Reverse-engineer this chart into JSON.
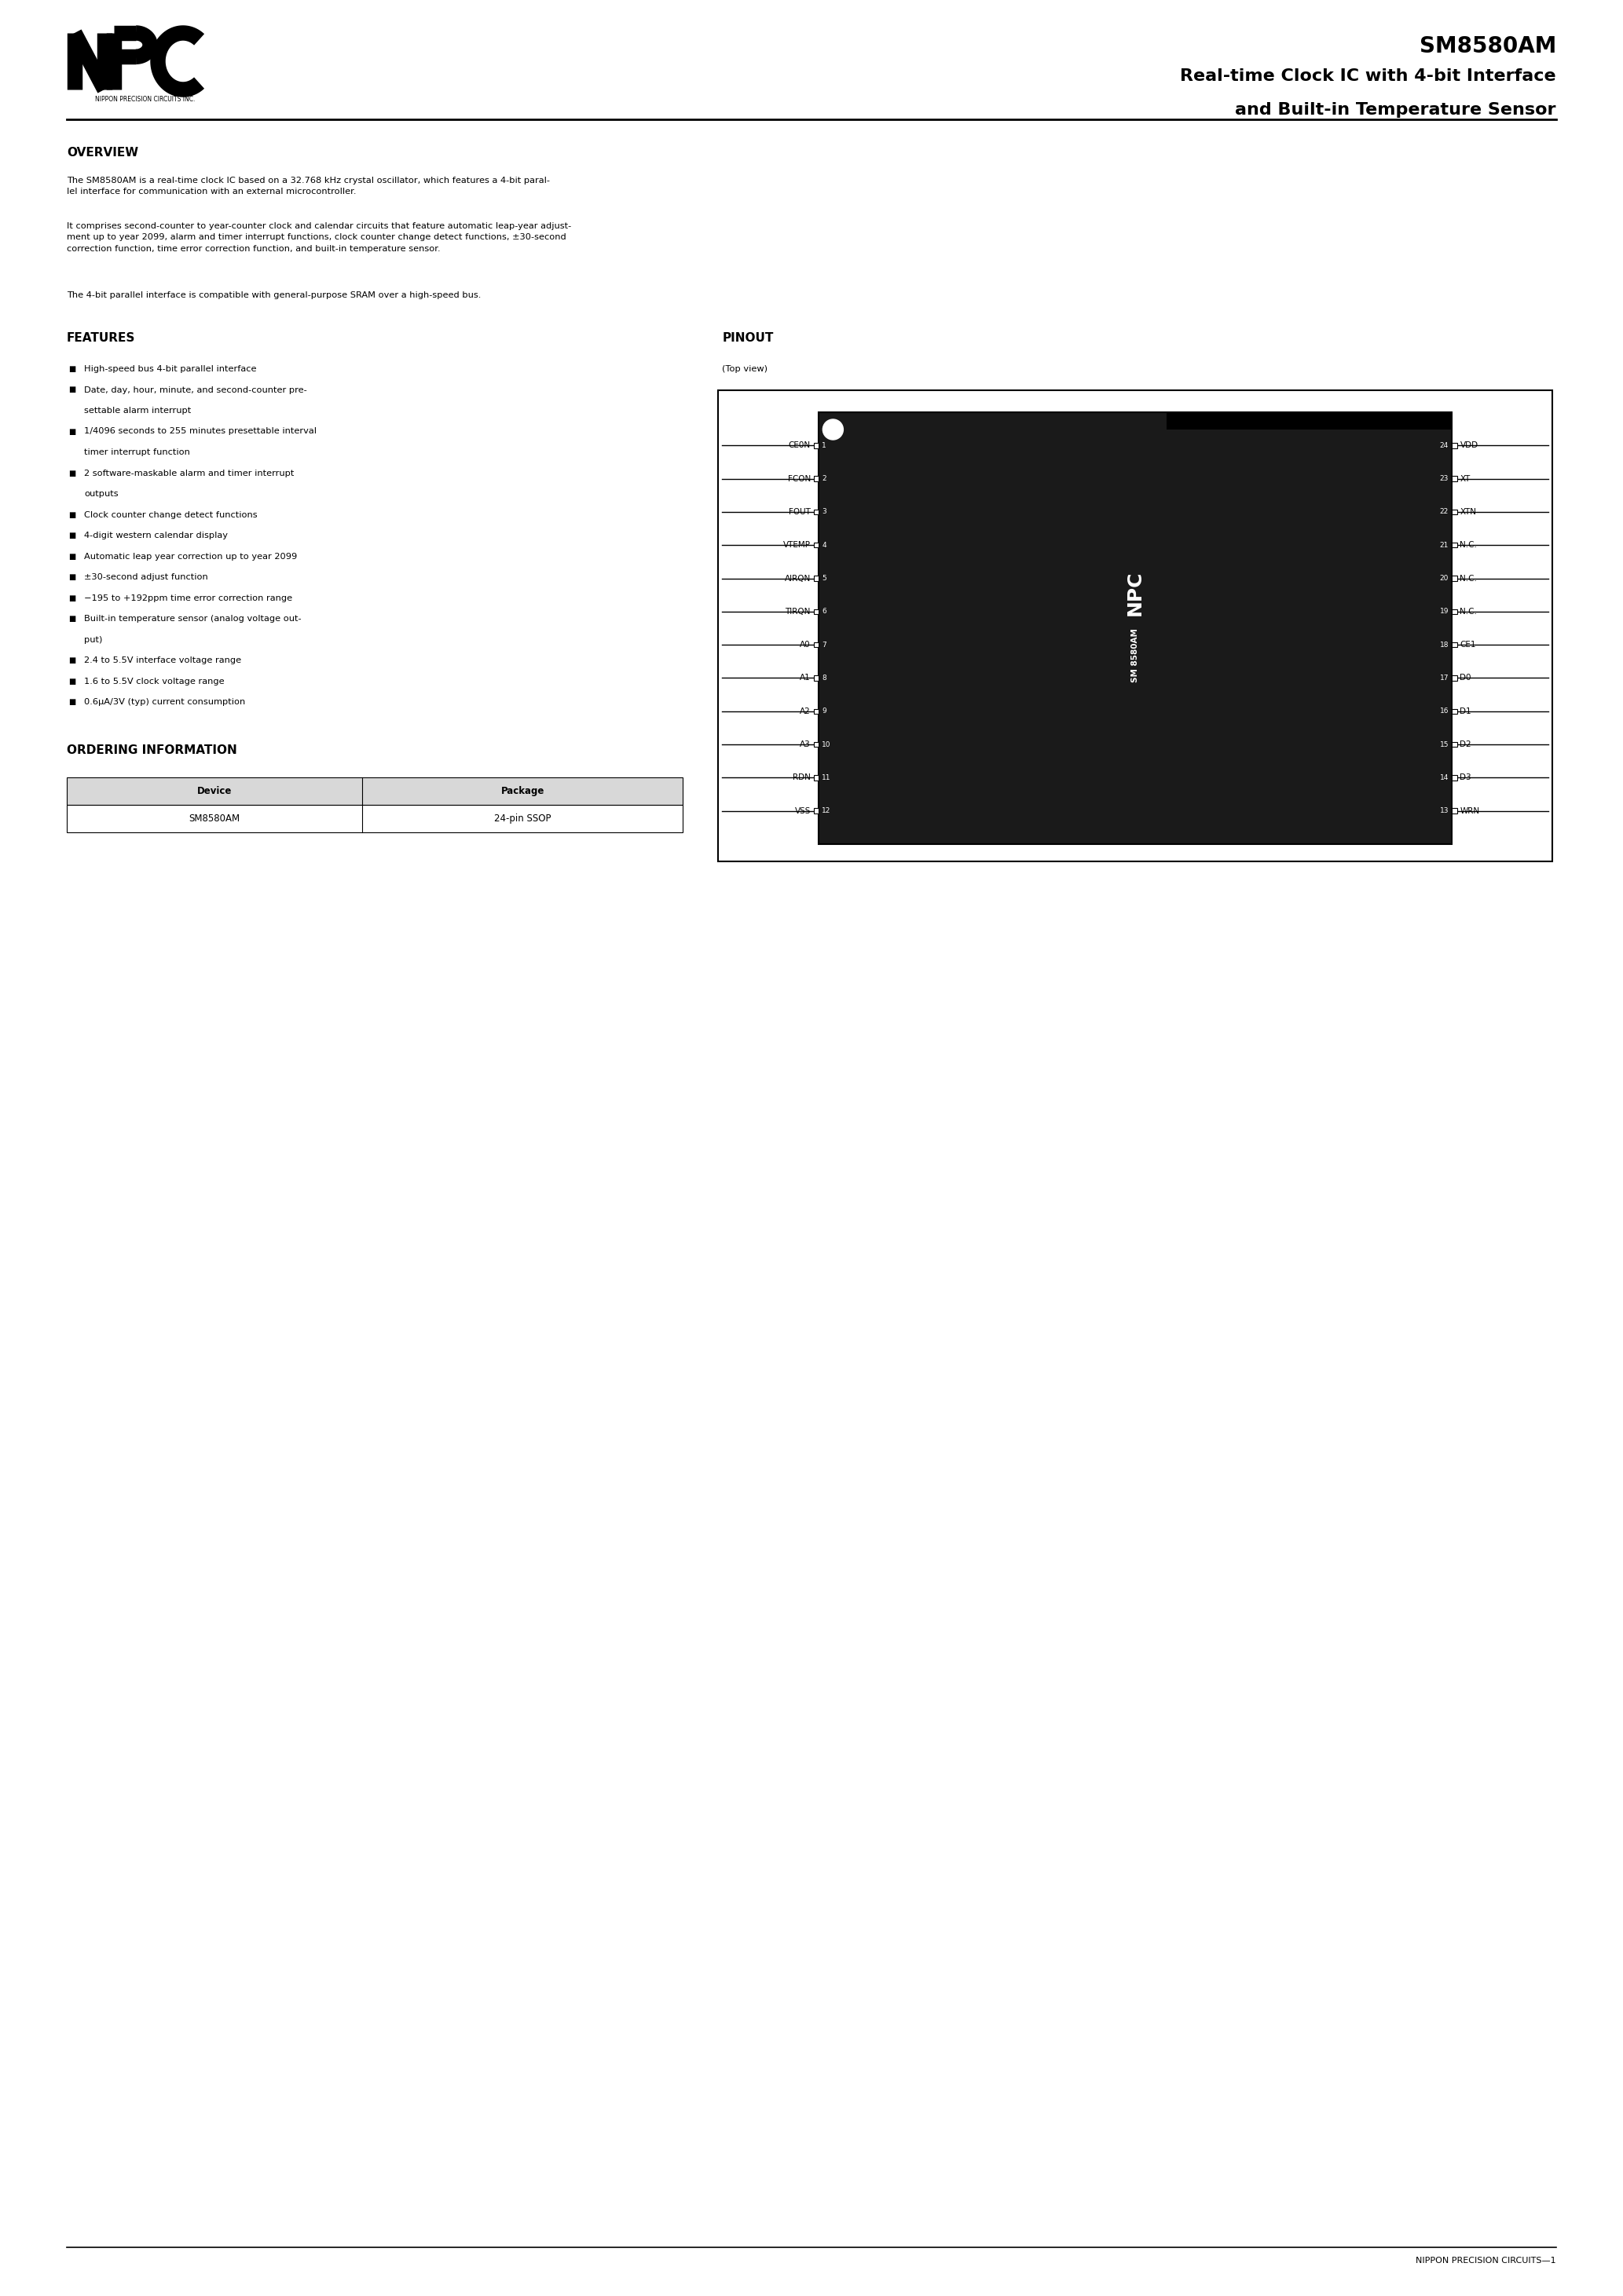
{
  "page_width": 20.66,
  "page_height": 29.24,
  "bg_color": "#ffffff",
  "lm": 0.85,
  "rm": 0.85,
  "company_name": "NIPPON PRECISION CIRCUITS INC.",
  "product_id": "SM8580AM",
  "title_line1": "Real-time Clock IC with 4-bit Interface",
  "title_line2": "and Built-in Temperature Sensor",
  "section_overview": "OVERVIEW",
  "overview_para1": "The SM8580AM is a real-time clock IC based on a 32.768 kHz crystal oscillator, which features a 4-bit paral-\nlel interface for communication with an external microcontroller.",
  "overview_para2": "It comprises second-counter to year-counter clock and calendar circuits that feature automatic leap-year adjust-\nment up to year 2099, alarm and timer interrupt functions, clock counter change detect functions, ±30-second\ncorrection function, time error correction function, and built-in temperature sensor.",
  "overview_para3": "The 4-bit parallel interface is compatible with general-purpose SRAM over a high-speed bus.",
  "section_features": "FEATURES",
  "section_pinout": "PINOUT",
  "pinout_topview": "(Top view)",
  "features_list": [
    [
      "High-speed bus 4-bit parallel interface"
    ],
    [
      "Date, day, hour, minute, and second-counter pre-",
      "settable alarm interrupt"
    ],
    [
      "1/4096 seconds to 255 minutes presettable interval",
      "timer interrupt function"
    ],
    [
      "2 software-maskable alarm and timer interrupt",
      "outputs"
    ],
    [
      "Clock counter change detect functions"
    ],
    [
      "4-digit western calendar display"
    ],
    [
      "Automatic leap year correction up to year 2099"
    ],
    [
      "±30-second adjust function"
    ],
    [
      "−195 to +192ppm time error correction range"
    ],
    [
      "Built-in temperature sensor (analog voltage out-",
      "put)"
    ],
    [
      "2.4 to 5.5V interface voltage range"
    ],
    [
      "1.6 to 5.5V clock voltage range"
    ],
    [
      "0.6μA/3V (typ) current consumption"
    ]
  ],
  "section_ordering": "ORDERING INFORMATION",
  "ordering_headers": [
    "Device",
    "Package"
  ],
  "ordering_rows": [
    [
      "SM8580AM",
      "24-pin SSOP"
    ]
  ],
  "footer_text": "NIPPON PRECISION CIRCUITS—1",
  "pin_left": [
    "CE0N",
    "FCON",
    "FOUT",
    "VTEMP",
    "AIRQN",
    "TIRQN",
    "A0",
    "A1",
    "A2",
    "A3",
    "RDN",
    "VSS"
  ],
  "pin_left_nums": [
    "1",
    "2",
    "3",
    "4",
    "5",
    "6",
    "7",
    "8",
    "9",
    "10",
    "11",
    "12"
  ],
  "pin_right": [
    "VDD",
    "XT",
    "XTN",
    "N.C.",
    "N.C.",
    "N.C.",
    "CE1",
    "D0",
    "D1",
    "D2",
    "D3",
    "WRN"
  ],
  "pin_right_nums": [
    "24",
    "23",
    "22",
    "21",
    "20",
    "19",
    "18",
    "17",
    "16",
    "15",
    "14",
    "13"
  ]
}
